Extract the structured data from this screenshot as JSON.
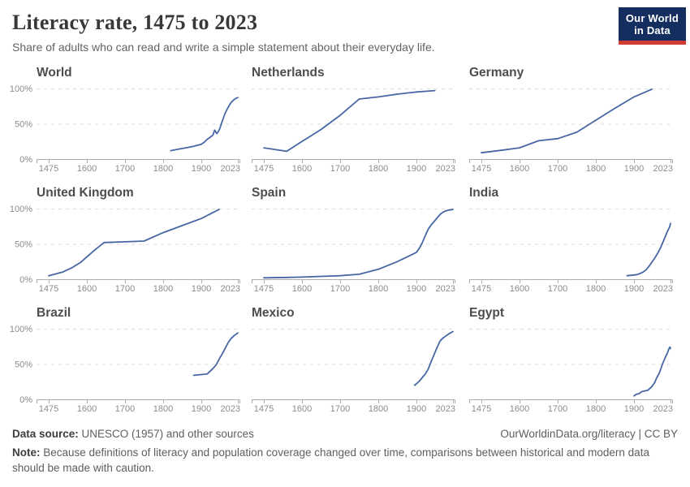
{
  "chart_data": {
    "type": "line",
    "title": "Literacy rate, 1475 to 2023",
    "subtitle": "Share of adults who can read and write a simple statement about their everyday life.",
    "facet_layout": "3x3-small-multiples",
    "unit": "%",
    "x_ticks": [
      1475,
      1600,
      1700,
      1800,
      1900,
      2023
    ],
    "y_ticks": [
      "0%",
      "50%",
      "100%"
    ],
    "ylim": [
      0,
      100
    ],
    "gridlines": "dashed horizontal lines at 50% and 100%, solid axis at 0%",
    "series": [
      {
        "name": "World",
        "points": [
          [
            1820,
            12
          ],
          [
            1840,
            14
          ],
          [
            1860,
            16
          ],
          [
            1880,
            18
          ],
          [
            1900,
            21
          ],
          [
            1910,
            24
          ],
          [
            1920,
            28
          ],
          [
            1930,
            31
          ],
          [
            1939,
            34
          ],
          [
            1945,
            41
          ],
          [
            1952,
            36
          ],
          [
            1957,
            39
          ],
          [
            1962,
            43
          ],
          [
            1970,
            53
          ],
          [
            1980,
            65
          ],
          [
            1990,
            73
          ],
          [
            2000,
            80
          ],
          [
            2010,
            84
          ],
          [
            2016,
            86
          ],
          [
            2023,
            87
          ]
        ]
      },
      {
        "name": "Netherlands",
        "points": [
          [
            1475,
            16
          ],
          [
            1550,
            11
          ],
          [
            1600,
            25
          ],
          [
            1650,
            42
          ],
          [
            1700,
            62
          ],
          [
            1750,
            85
          ],
          [
            1800,
            88
          ],
          [
            1850,
            92
          ],
          [
            1900,
            95
          ],
          [
            1930,
            96
          ],
          [
            1962,
            97
          ]
        ]
      },
      {
        "name": "Germany",
        "points": [
          [
            1475,
            9
          ],
          [
            1550,
            13
          ],
          [
            1600,
            16
          ],
          [
            1650,
            26
          ],
          [
            1700,
            29
          ],
          [
            1750,
            38
          ],
          [
            1800,
            55
          ],
          [
            1850,
            72
          ],
          [
            1900,
            88
          ],
          [
            1960,
            99
          ]
        ]
      },
      {
        "name": "United Kingdom",
        "points": [
          [
            1475,
            5
          ],
          [
            1520,
            10
          ],
          [
            1550,
            16
          ],
          [
            1580,
            24
          ],
          [
            1620,
            41
          ],
          [
            1645,
            52
          ],
          [
            1700,
            53
          ],
          [
            1750,
            54
          ],
          [
            1800,
            66
          ],
          [
            1850,
            76
          ],
          [
            1900,
            86
          ],
          [
            1960,
            99
          ]
        ]
      },
      {
        "name": "Spain",
        "points": [
          [
            1475,
            2
          ],
          [
            1550,
            2.5
          ],
          [
            1600,
            3
          ],
          [
            1650,
            4
          ],
          [
            1700,
            5
          ],
          [
            1750,
            7
          ],
          [
            1800,
            14
          ],
          [
            1850,
            25
          ],
          [
            1900,
            38
          ],
          [
            1910,
            44
          ],
          [
            1920,
            52
          ],
          [
            1930,
            62
          ],
          [
            1940,
            71
          ],
          [
            1950,
            77
          ],
          [
            1960,
            82
          ],
          [
            1970,
            87
          ],
          [
            1980,
            92
          ],
          [
            1990,
            95
          ],
          [
            2000,
            97
          ],
          [
            2010,
            98
          ],
          [
            2016,
            98
          ],
          [
            2023,
            99
          ]
        ]
      },
      {
        "name": "India",
        "points": [
          [
            1882,
            5
          ],
          [
            1900,
            6
          ],
          [
            1910,
            6.5
          ],
          [
            1920,
            8
          ],
          [
            1930,
            10
          ],
          [
            1940,
            13
          ],
          [
            1950,
            18
          ],
          [
            1960,
            24
          ],
          [
            1970,
            30
          ],
          [
            1980,
            37
          ],
          [
            1990,
            45
          ],
          [
            2000,
            55
          ],
          [
            2010,
            65
          ],
          [
            2015,
            70
          ],
          [
            2020,
            74
          ],
          [
            2023,
            79
          ]
        ]
      },
      {
        "name": "Brazil",
        "points": [
          [
            1880,
            34
          ],
          [
            1900,
            35
          ],
          [
            1920,
            36
          ],
          [
            1930,
            40
          ],
          [
            1940,
            44
          ],
          [
            1950,
            49
          ],
          [
            1960,
            57
          ],
          [
            1970,
            64
          ],
          [
            1980,
            72
          ],
          [
            1990,
            80
          ],
          [
            2000,
            86
          ],
          [
            2010,
            90
          ],
          [
            2023,
            94
          ]
        ]
      },
      {
        "name": "Mexico",
        "points": [
          [
            1895,
            20
          ],
          [
            1900,
            22
          ],
          [
            1910,
            26
          ],
          [
            1920,
            31
          ],
          [
            1930,
            36
          ],
          [
            1940,
            43
          ],
          [
            1950,
            54
          ],
          [
            1960,
            64
          ],
          [
            1970,
            74
          ],
          [
            1980,
            83
          ],
          [
            1990,
            87
          ],
          [
            2000,
            90
          ],
          [
            2010,
            93
          ],
          [
            2023,
            96
          ]
        ]
      },
      {
        "name": "Egypt",
        "points": [
          [
            1900,
            5
          ],
          [
            1907,
            7
          ],
          [
            1917,
            8
          ],
          [
            1927,
            11
          ],
          [
            1937,
            12
          ],
          [
            1947,
            13
          ],
          [
            1960,
            18
          ],
          [
            1970,
            24
          ],
          [
            1976,
            30
          ],
          [
            1986,
            38
          ],
          [
            1996,
            50
          ],
          [
            2006,
            60
          ],
          [
            2013,
            66
          ],
          [
            2017,
            71
          ],
          [
            2021,
            74
          ],
          [
            2023,
            72
          ]
        ]
      }
    ]
  },
  "logo": {
    "line1": "Our World",
    "line2": "in Data"
  },
  "footer": {
    "datasource_label": "Data source:",
    "datasource_text": " UNESCO (1957) and other sources",
    "link_text": "OurWorldinData.org/literacy | CC BY",
    "note_label": "Note:",
    "note_text": " Because definitions of literacy and population coverage changed over time, comparisons between historical and modern data should be made with caution."
  },
  "colors": {
    "line": "#4767A4",
    "grid": "#DCDCDC",
    "axis": "#ADADAD",
    "tick_text": "#8C8C8C",
    "facet_title": "#4D4D4D",
    "logo_bg": "#142F5F",
    "logo_accent": "#D13B32"
  }
}
